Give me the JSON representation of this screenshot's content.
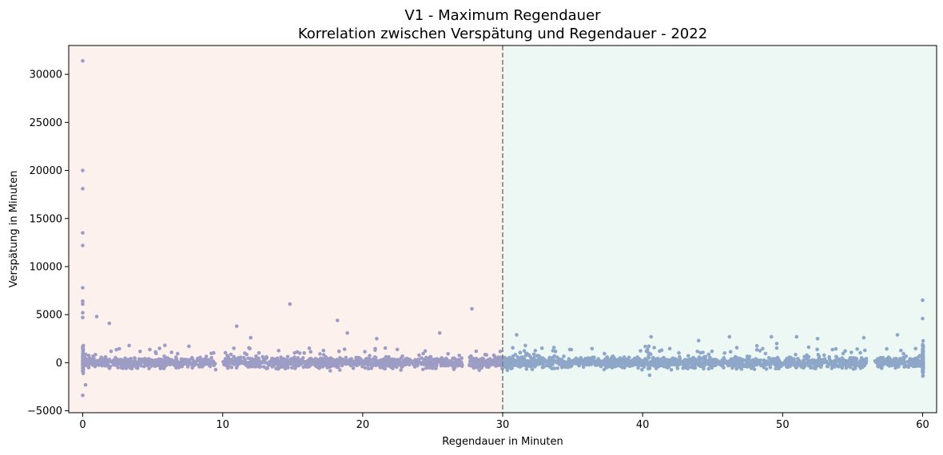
{
  "chart_data": {
    "type": "scatter",
    "title": "V1 - Maximum Regendauer",
    "subtitle": "Korrelation zwischen Verspätung und Regendauer - 2022",
    "xlabel": "Regendauer in Minuten",
    "ylabel": "Verspätung in Minuten",
    "xlim": [
      -1,
      61
    ],
    "ylim": [
      -5200,
      33000
    ],
    "x_ticks": [
      0,
      10,
      20,
      30,
      40,
      50,
      60
    ],
    "y_ticks": [
      -5000,
      0,
      5000,
      10000,
      15000,
      20000,
      25000,
      30000
    ],
    "grid": false,
    "threshold_line": {
      "x": 30,
      "style": "dashed",
      "color": "#7f7f7f"
    },
    "regions": [
      {
        "x_from": -1,
        "x_to": 30,
        "color": "#fdf1ee"
      },
      {
        "x_from": 30,
        "x_to": 61,
        "color": "#edf7f3"
      }
    ],
    "series": [
      {
        "color": "#9c9cc4",
        "x_range": [
          0,
          30
        ],
        "outliers": [
          [
            0,
            31400
          ],
          [
            0,
            20000
          ],
          [
            0,
            18100
          ],
          [
            0,
            13500
          ],
          [
            0,
            12200
          ],
          [
            0,
            7800
          ],
          [
            0,
            6400
          ],
          [
            0,
            6100
          ],
          [
            0,
            5200
          ],
          [
            0,
            4700
          ],
          [
            0,
            -3400
          ],
          [
            0.2,
            -2300
          ],
          [
            1,
            4800
          ],
          [
            1.9,
            4100
          ],
          [
            11,
            3800
          ],
          [
            14.8,
            6100
          ],
          [
            18.2,
            4400
          ],
          [
            18.9,
            3100
          ],
          [
            25.5,
            3100
          ],
          [
            27.8,
            5600
          ],
          [
            12,
            2600
          ],
          [
            21,
            2500
          ]
        ]
      },
      {
        "color": "#8ea7c8",
        "x_range": [
          30,
          60
        ],
        "outliers": [
          [
            60,
            6500
          ],
          [
            60,
            4600
          ],
          [
            31,
            2900
          ],
          [
            40.6,
            2700
          ],
          [
            46.2,
            2700
          ],
          [
            49.2,
            2700
          ],
          [
            51,
            2700
          ],
          [
            58.2,
            2900
          ],
          [
            55.8,
            2600
          ],
          [
            40.5,
            -1300
          ],
          [
            60,
            -900
          ],
          [
            44,
            2300
          ],
          [
            52.5,
            2500
          ]
        ]
      }
    ]
  }
}
